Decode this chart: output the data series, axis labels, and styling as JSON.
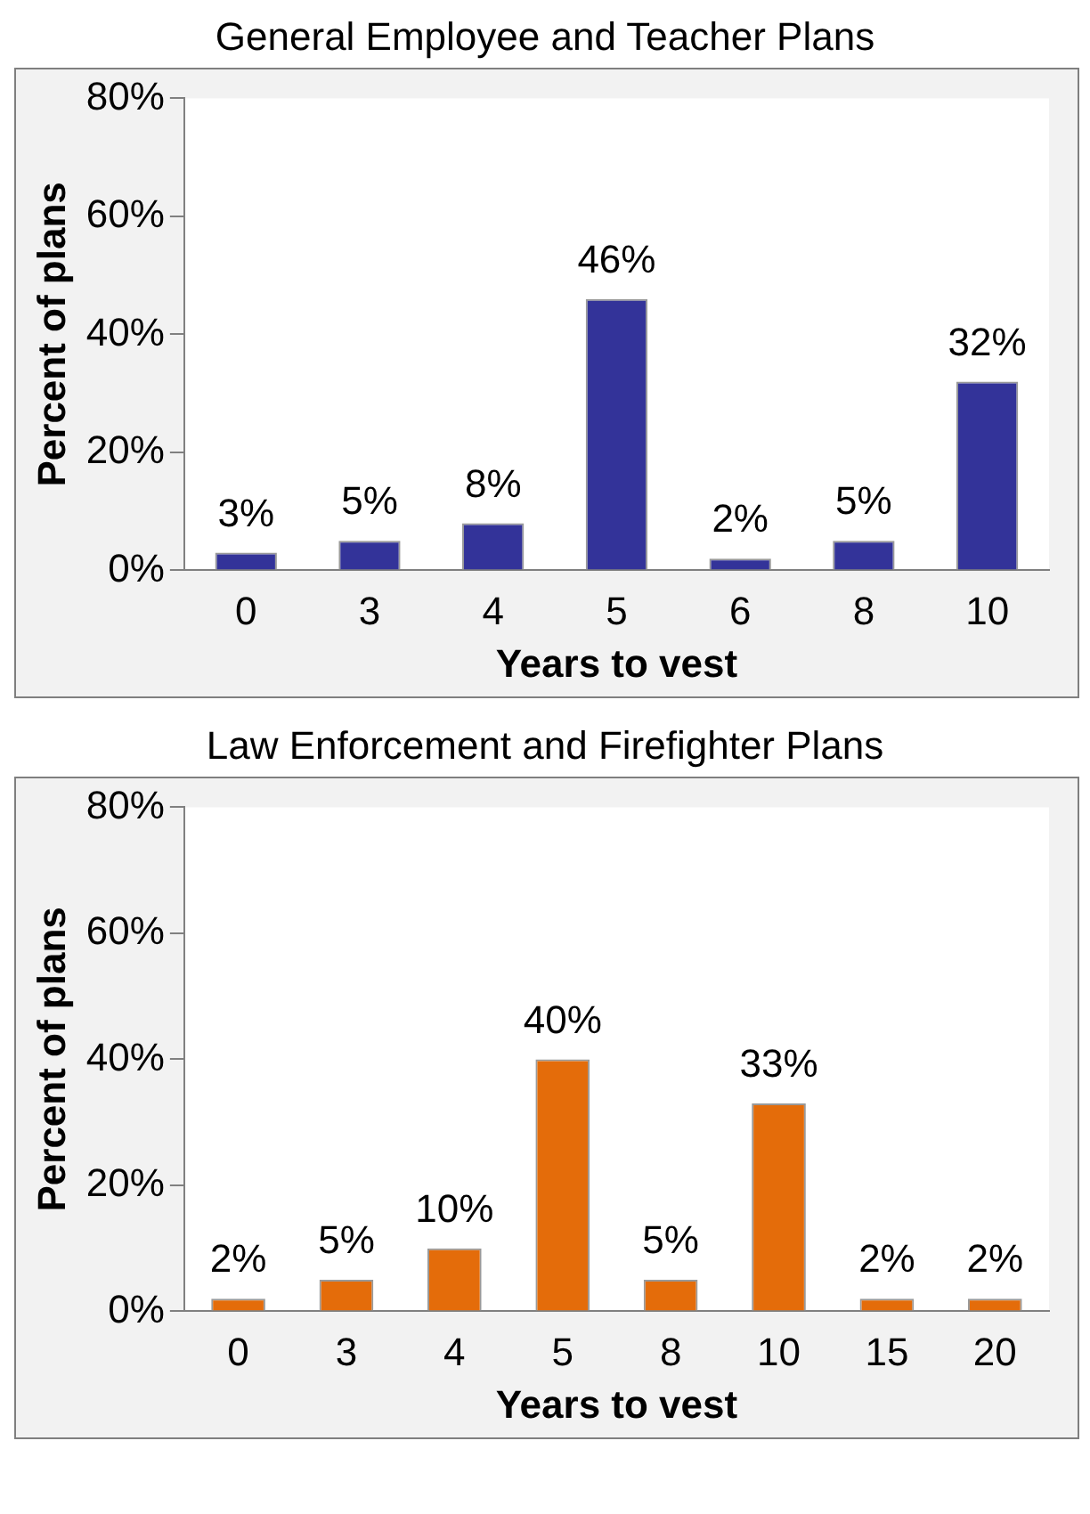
{
  "chart_data": [
    {
      "type": "bar",
      "title": "General Employee and Teacher Plans",
      "xlabel": "Years to vest",
      "ylabel": "Percent of plans",
      "categories": [
        "0",
        "3",
        "4",
        "5",
        "6",
        "8",
        "10"
      ],
      "values": [
        3,
        5,
        8,
        46,
        2,
        5,
        32
      ],
      "color": "#333399",
      "value_labels": [
        "3%",
        "5%",
        "8%",
        "46%",
        "2%",
        "5%",
        "32%"
      ],
      "ylim": [
        0,
        80
      ],
      "yticks": [
        {
          "value": 0,
          "label": "0%"
        },
        {
          "value": 20,
          "label": "20%"
        },
        {
          "value": 40,
          "label": "40%"
        },
        {
          "value": 60,
          "label": "60%"
        },
        {
          "value": 80,
          "label": "80%"
        }
      ],
      "grid": false,
      "legend": false
    },
    {
      "type": "bar",
      "title": "Law Enforcement and Firefighter Plans",
      "xlabel": "Years to vest",
      "ylabel": "Percent of plans",
      "categories": [
        "0",
        "3",
        "4",
        "5",
        "8",
        "10",
        "15",
        "20"
      ],
      "values": [
        2,
        5,
        10,
        40,
        5,
        33,
        2,
        2
      ],
      "color": "#e46c0a",
      "value_labels": [
        "2%",
        "5%",
        "10%",
        "40%",
        "5%",
        "33%",
        "2%",
        "2%"
      ],
      "ylim": [
        0,
        80
      ],
      "yticks": [
        {
          "value": 0,
          "label": "0%"
        },
        {
          "value": 20,
          "label": "20%"
        },
        {
          "value": 40,
          "label": "40%"
        },
        {
          "value": 60,
          "label": "60%"
        },
        {
          "value": 80,
          "label": "80%"
        }
      ],
      "grid": false,
      "legend": false
    }
  ]
}
